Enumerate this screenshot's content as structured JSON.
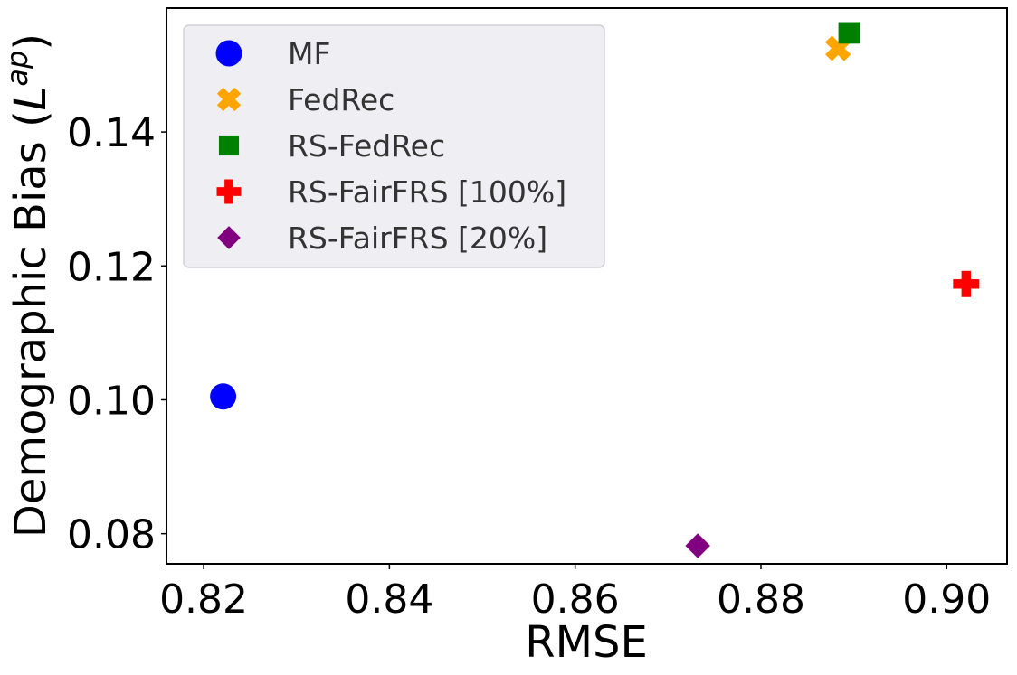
{
  "chart_data": {
    "type": "scatter",
    "xlabel": "RMSE",
    "ylabel": "Demographic Bias (",
    "ylabel_symbol": "L",
    "ylabel_superscript": "ap",
    "ylabel_close": ")",
    "xlim": [
      0.816,
      0.9065
    ],
    "ylim": [
      0.0755,
      0.1585
    ],
    "x_ticks": [
      0.82,
      0.84,
      0.86,
      0.88,
      0.9
    ],
    "x_tick_labels": [
      "0.82",
      "0.84",
      "0.86",
      "0.88",
      "0.90"
    ],
    "y_ticks": [
      0.08,
      0.1,
      0.12,
      0.14
    ],
    "y_tick_labels": [
      "0.08",
      "0.10",
      "0.12",
      "0.14"
    ],
    "grid": false,
    "legend_position": "top-left",
    "series": [
      {
        "name": "MF",
        "marker": "circle",
        "color": "#0000ff",
        "points": [
          {
            "x": 0.8221,
            "y": 0.1005
          }
        ]
      },
      {
        "name": "FedRec",
        "marker": "x",
        "color": "#ffa500",
        "points": [
          {
            "x": 0.8883,
            "y": 0.1525
          }
        ]
      },
      {
        "name": "RS-FedRec",
        "marker": "square",
        "color": "#008000",
        "points": [
          {
            "x": 0.8895,
            "y": 0.1548
          }
        ]
      },
      {
        "name": "RS-FairFRS [100%]",
        "marker": "plus",
        "color": "#ff0000",
        "points": [
          {
            "x": 0.9021,
            "y": 0.1173
          }
        ]
      },
      {
        "name": "RS-FairFRS [20%]",
        "marker": "diamond",
        "color": "#800080",
        "points": [
          {
            "x": 0.8732,
            "y": 0.0782
          }
        ]
      }
    ]
  }
}
